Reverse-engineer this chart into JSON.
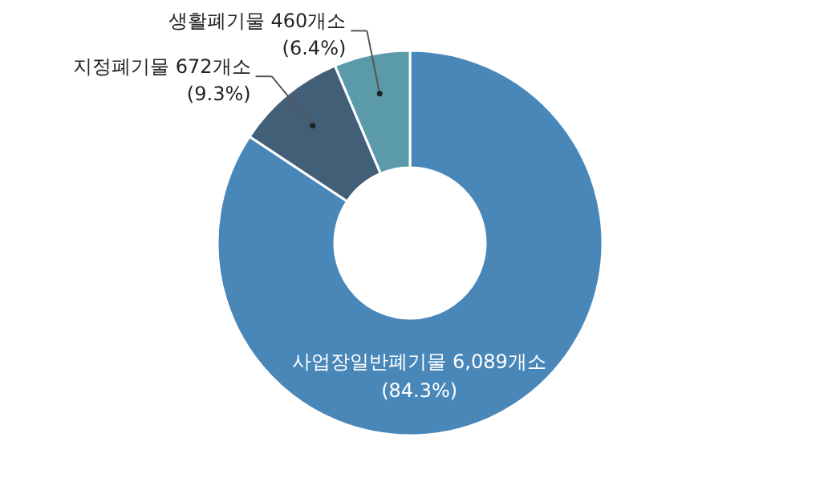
{
  "chart_data": {
    "type": "donut",
    "categories": [
      "사업장일반폐기물",
      "지정폐기물",
      "생활폐기물"
    ],
    "values": [
      6089,
      672,
      460
    ],
    "colors": [
      "#4a87b9",
      "#435f78",
      "#5a9aa9"
    ],
    "value_labels": [
      "6,089개소 (84.3%)",
      "672개소 (9.3%)",
      "460개소 (6.4%)"
    ]
  }
}
